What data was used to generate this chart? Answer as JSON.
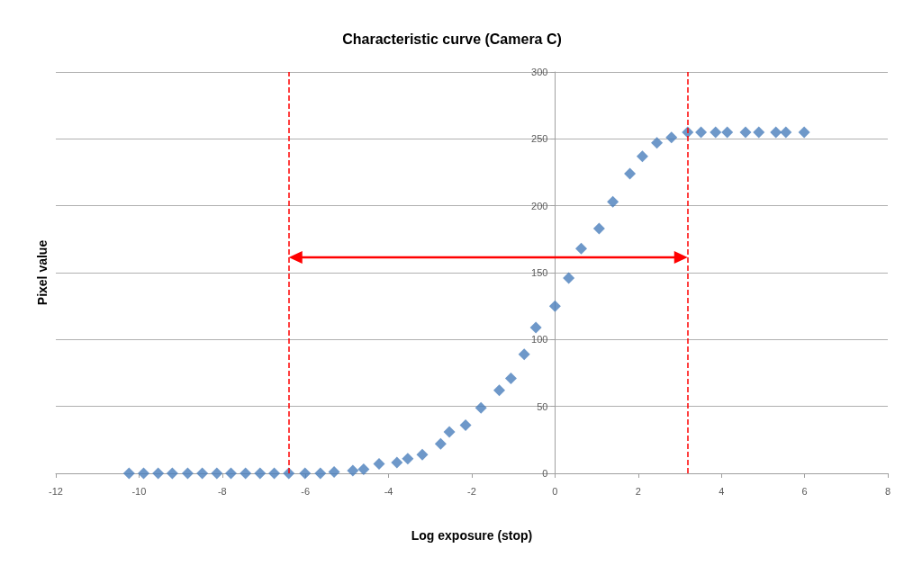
{
  "chart_data": {
    "type": "scatter",
    "title": "Characteristic curve (Camera C)",
    "xlabel": "Log exposure (stop)",
    "ylabel": "Pixel value",
    "x": [
      -10.24,
      -9.89,
      -9.54,
      -9.2,
      -8.83,
      -8.48,
      -8.13,
      -7.79,
      -7.44,
      -7.09,
      -6.75,
      -6.4,
      -6.01,
      -5.64,
      -5.31,
      -4.86,
      -4.6,
      -4.23,
      -3.8,
      -3.54,
      -3.19,
      -2.75,
      -2.54,
      -2.15,
      -1.78,
      -1.34,
      -1.06,
      -0.74,
      -0.46,
      0,
      0.33,
      0.63,
      1.06,
      1.39,
      1.8,
      2.1,
      2.45,
      2.8,
      3.19,
      3.51,
      3.86,
      4.14,
      4.58,
      4.9,
      5.31,
      5.55,
      5.99
    ],
    "values": [
      0,
      0,
      0,
      0,
      0,
      0,
      0,
      0,
      0,
      0,
      0,
      0,
      0,
      0,
      1,
      2,
      3,
      7,
      8,
      11,
      14,
      22,
      31,
      36,
      49,
      62,
      71,
      89,
      109,
      125,
      146,
      168,
      183,
      203,
      224,
      237,
      247,
      251,
      255,
      255,
      255,
      255,
      255,
      255,
      255,
      255,
      255
    ],
    "color": "#4a7ebb",
    "marker": "diamond",
    "xlim": [
      -12,
      8
    ],
    "xticks": [
      -12,
      -10,
      -8,
      -6,
      -4,
      -2,
      0,
      2,
      4,
      6,
      8
    ],
    "ylim": [
      0,
      300
    ],
    "yticks": [
      0,
      50,
      100,
      150,
      200,
      250,
      300
    ],
    "grid": "y",
    "ref_lines": [
      {
        "axis": "x",
        "value": -6.4,
        "color": "#ff0000",
        "line_style": "dashed"
      },
      {
        "axis": "x",
        "value": 3.19,
        "color": "#ff0000",
        "line_style": "dashed"
      }
    ]
  }
}
